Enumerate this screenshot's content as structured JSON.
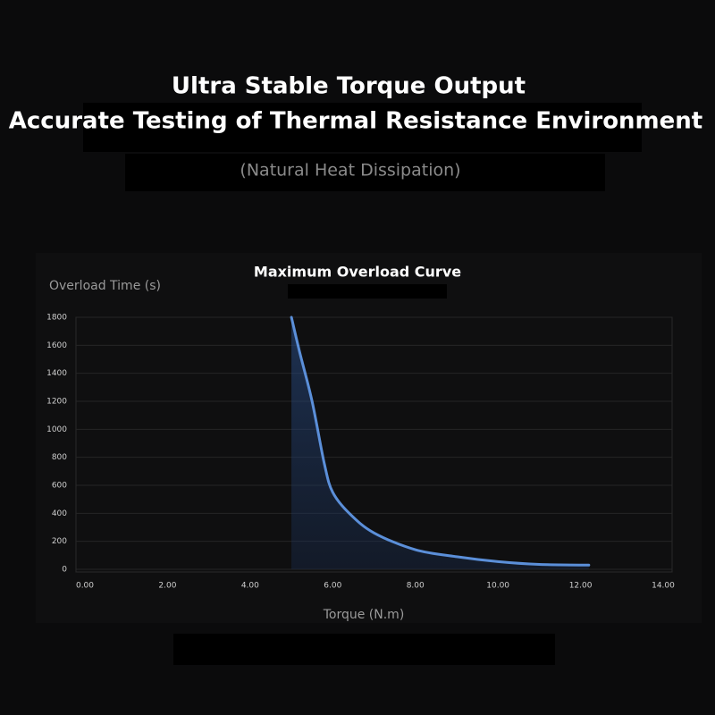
{
  "header": {
    "title_lines": [
      "Ultra Stable Torque Output",
      "Accurate Testing of Thermal Resistance Environment"
    ],
    "subtitle": "(Natural Heat Dissipation)"
  },
  "chart_data": {
    "type": "line",
    "title": "Maximum Overload Curve",
    "y_label": "Overload Time (s)",
    "x_label": "Torque (N.m)",
    "x": [
      5.0,
      5.2,
      5.5,
      5.8,
      6.0,
      6.4,
      7.0,
      8.0,
      9.0,
      10.0,
      11.0,
      12.2
    ],
    "values": [
      1800,
      1550,
      1200,
      750,
      550,
      400,
      260,
      140,
      90,
      55,
      35,
      30
    ],
    "color": "#5b8fd9",
    "fill_area": true,
    "grid": true,
    "xlim": [
      0,
      14
    ],
    "xticks": [
      {
        "value": 0,
        "label": "0.00"
      },
      {
        "value": 2,
        "label": "2.00"
      },
      {
        "value": 4,
        "label": "4.00"
      },
      {
        "value": 6,
        "label": "6.00"
      },
      {
        "value": 8,
        "label": "8.00"
      },
      {
        "value": 10,
        "label": "10.00"
      },
      {
        "value": 12,
        "label": "12.00"
      },
      {
        "value": 14,
        "label": "14.00"
      }
    ],
    "ylim": [
      0,
      1800
    ],
    "yticks": [
      0,
      200,
      400,
      600,
      800,
      1000,
      1200,
      1400,
      1600,
      1800
    ]
  }
}
